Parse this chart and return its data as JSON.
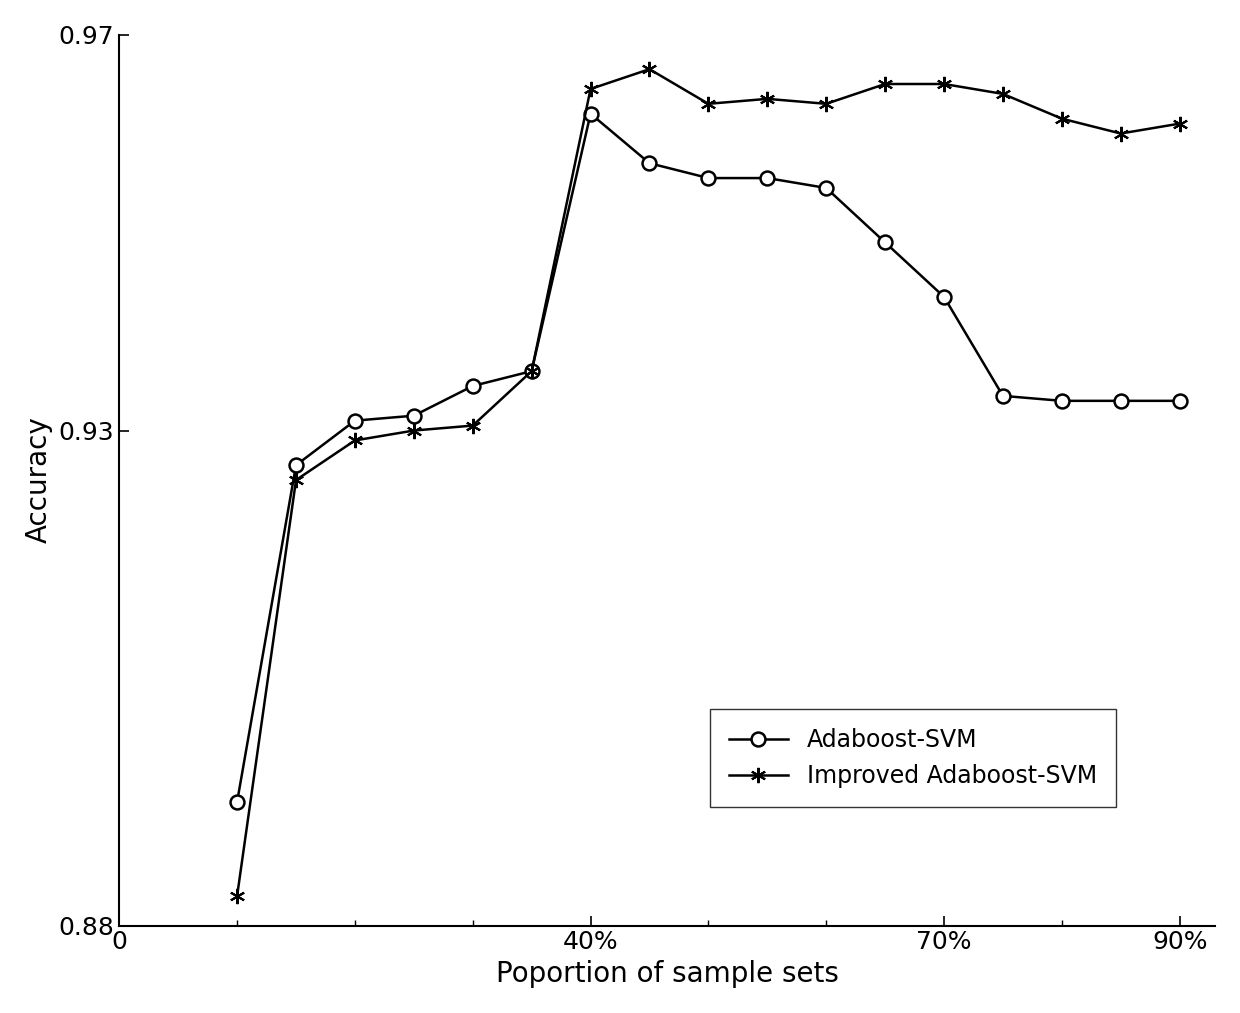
{
  "x_values": [
    10,
    15,
    20,
    25,
    30,
    35,
    40,
    45,
    50,
    55,
    60,
    65,
    70,
    75,
    80,
    85,
    90
  ],
  "adaboost_svm": [
    0.8925,
    0.9265,
    0.931,
    0.9315,
    0.9345,
    0.936,
    0.962,
    0.957,
    0.9555,
    0.9555,
    0.9545,
    0.949,
    0.9435,
    0.9335,
    0.933,
    0.933,
    0.933
  ],
  "improved_adaboost_svm": [
    0.883,
    0.925,
    0.929,
    0.93,
    0.9305,
    0.936,
    0.9645,
    0.9665,
    0.963,
    0.9635,
    0.963,
    0.965,
    0.965,
    0.964,
    0.9615,
    0.96,
    0.961
  ],
  "xlabel": "Poportion of sample sets",
  "ylabel": "Accuracy",
  "ylim": [
    0.88,
    0.97
  ],
  "xlim": [
    0,
    93
  ],
  "yticks": [
    0.88,
    0.93,
    0.97
  ],
  "xtick_major_positions": [
    0,
    40,
    70,
    90
  ],
  "xtick_major_labels": [
    "0",
    "40%",
    "70%",
    "90%"
  ],
  "xtick_minor_positions": [
    10,
    20,
    30,
    50,
    60,
    80
  ],
  "legend_labels": [
    "Adaboost-SVM",
    "Improved Adaboost-SVM"
  ],
  "line_color": "#000000",
  "background_color": "#ffffff",
  "label_fontsize": 20,
  "tick_fontsize": 18,
  "legend_fontsize": 17
}
